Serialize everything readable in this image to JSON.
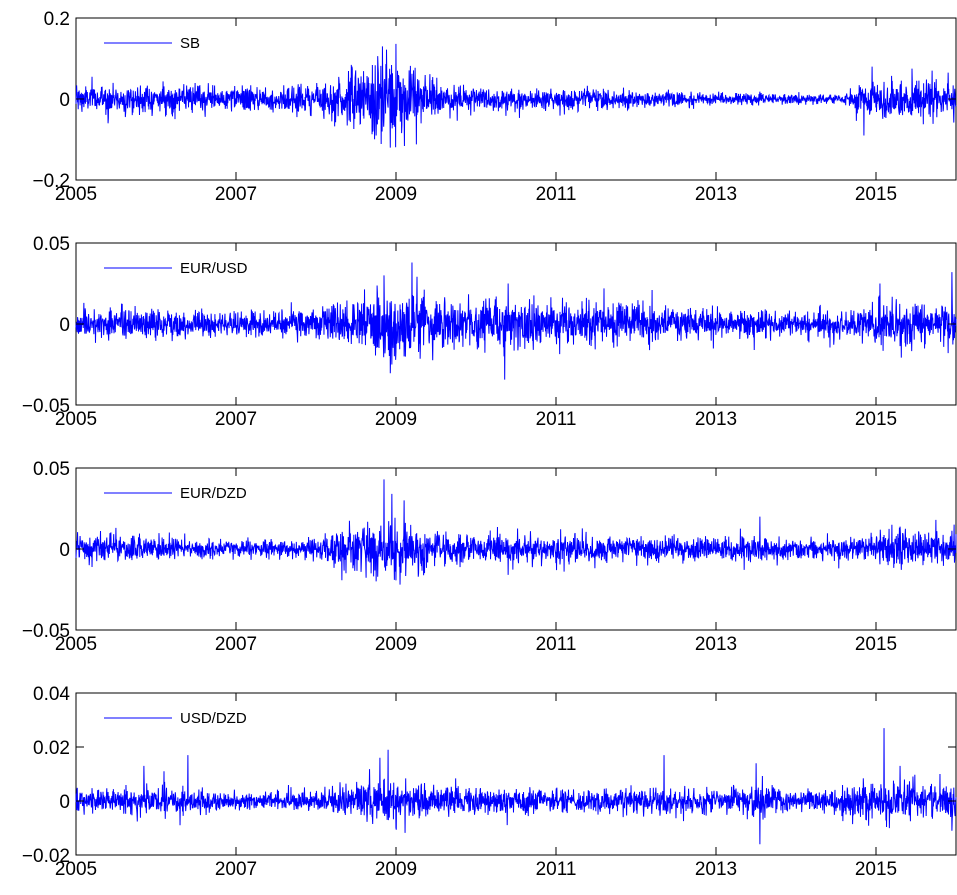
{
  "chart_data": [
    {
      "type": "line",
      "grid": false,
      "legend_position": "top-left",
      "xlim": [
        2005,
        2016
      ],
      "ylim": [
        -0.2,
        0.2
      ],
      "x_ticks": [
        2005,
        2007,
        2009,
        2011,
        2013,
        2015
      ],
      "x_tick_labels": [
        "2005",
        "2007",
        "2009",
        "2011",
        "2013",
        "2015"
      ],
      "y_ticks": [
        -0.2,
        0,
        0.2
      ],
      "y_tick_labels": [
        "−0.2",
        "0",
        "0.2"
      ],
      "series": [
        {
          "name": "SB",
          "color": "#0000ff",
          "volatility_profile": [
            [
              2005.0,
              0.018
            ],
            [
              2006.0,
              0.016
            ],
            [
              2007.0,
              0.015
            ],
            [
              2008.0,
              0.018
            ],
            [
              2008.5,
              0.035
            ],
            [
              2008.8,
              0.05
            ],
            [
              2009.0,
              0.055
            ],
            [
              2009.3,
              0.035
            ],
            [
              2009.6,
              0.02
            ],
            [
              2010.0,
              0.015
            ],
            [
              2011.0,
              0.013
            ],
            [
              2012.0,
              0.011
            ],
            [
              2013.0,
              0.007
            ],
            [
              2014.0,
              0.007
            ],
            [
              2014.6,
              0.006
            ],
            [
              2014.8,
              0.02
            ],
            [
              2015.0,
              0.025
            ],
            [
              2016.0,
              0.022
            ]
          ],
          "peaks": [
            {
              "x": 2008.83,
              "y": 0.13
            },
            {
              "x": 2008.93,
              "y": -0.12
            },
            {
              "x": 2009.0,
              "y": 0.136
            },
            {
              "x": 2008.75,
              "y": -0.09
            },
            {
              "x": 2008.45,
              "y": 0.08
            },
            {
              "x": 2014.85,
              "y": -0.09
            },
            {
              "x": 2014.95,
              "y": 0.08
            },
            {
              "x": 2015.45,
              "y": 0.075
            },
            {
              "x": 2015.7,
              "y": 0.07
            },
            {
              "x": 2015.9,
              "y": 0.065
            },
            {
              "x": 2005.2,
              "y": 0.055
            },
            {
              "x": 2005.4,
              "y": -0.06
            }
          ]
        }
      ]
    },
    {
      "type": "line",
      "grid": false,
      "legend_position": "top-left",
      "xlim": [
        2005,
        2016
      ],
      "ylim": [
        -0.05,
        0.05
      ],
      "x_ticks": [
        2005,
        2007,
        2009,
        2011,
        2013,
        2015
      ],
      "x_tick_labels": [
        "2005",
        "2007",
        "2009",
        "2011",
        "2013",
        "2015"
      ],
      "y_ticks": [
        -0.05,
        0,
        0.05
      ],
      "y_tick_labels": [
        "−0.05",
        "0",
        "0.05"
      ],
      "series": [
        {
          "name": "EUR/USD",
          "color": "#0000ff",
          "volatility_profile": [
            [
              2005.0,
              0.005
            ],
            [
              2006.0,
              0.0045
            ],
            [
              2007.0,
              0.0035
            ],
            [
              2008.0,
              0.0045
            ],
            [
              2008.6,
              0.009
            ],
            [
              2009.0,
              0.011
            ],
            [
              2009.4,
              0.008
            ],
            [
              2009.8,
              0.0055
            ],
            [
              2010.2,
              0.008
            ],
            [
              2010.6,
              0.0075
            ],
            [
              2011.0,
              0.0065
            ],
            [
              2012.0,
              0.006
            ],
            [
              2013.0,
              0.0045
            ],
            [
              2014.0,
              0.0035
            ],
            [
              2014.8,
              0.005
            ],
            [
              2015.0,
              0.007
            ],
            [
              2016.0,
              0.006
            ]
          ],
          "peaks": [
            {
              "x": 2009.2,
              "y": 0.038
            },
            {
              "x": 2008.85,
              "y": 0.03
            },
            {
              "x": 2008.95,
              "y": -0.025
            },
            {
              "x": 2009.1,
              "y": -0.02
            },
            {
              "x": 2010.4,
              "y": 0.025
            },
            {
              "x": 2010.35,
              "y": -0.02
            },
            {
              "x": 2011.6,
              "y": 0.022
            },
            {
              "x": 2012.2,
              "y": 0.021
            },
            {
              "x": 2015.05,
              "y": 0.025
            },
            {
              "x": 2015.95,
              "y": 0.032
            },
            {
              "x": 2015.9,
              "y": -0.018
            },
            {
              "x": 2005.1,
              "y": 0.013
            }
          ]
        }
      ]
    },
    {
      "type": "line",
      "grid": false,
      "legend_position": "top-left",
      "xlim": [
        2005,
        2016
      ],
      "ylim": [
        -0.05,
        0.05
      ],
      "x_ticks": [
        2005,
        2007,
        2009,
        2011,
        2013,
        2015
      ],
      "x_tick_labels": [
        "2005",
        "2007",
        "2009",
        "2011",
        "2013",
        "2015"
      ],
      "y_ticks": [
        -0.05,
        0,
        0.05
      ],
      "y_tick_labels": [
        "−0.05",
        "0",
        "0.05"
      ],
      "series": [
        {
          "name": "EUR/DZD",
          "color": "#0000ff",
          "volatility_profile": [
            [
              2005.0,
              0.004
            ],
            [
              2006.0,
              0.0035
            ],
            [
              2007.0,
              0.0028
            ],
            [
              2008.0,
              0.0035
            ],
            [
              2008.6,
              0.008
            ],
            [
              2009.0,
              0.009
            ],
            [
              2009.4,
              0.006
            ],
            [
              2009.8,
              0.0045
            ],
            [
              2010.3,
              0.005
            ],
            [
              2011.0,
              0.0045
            ],
            [
              2012.0,
              0.004
            ],
            [
              2013.0,
              0.0035
            ],
            [
              2013.6,
              0.004
            ],
            [
              2014.0,
              0.0028
            ],
            [
              2014.8,
              0.004
            ],
            [
              2015.2,
              0.006
            ],
            [
              2016.0,
              0.0055
            ]
          ],
          "peaks": [
            {
              "x": 2008.85,
              "y": 0.043
            },
            {
              "x": 2009.1,
              "y": 0.03
            },
            {
              "x": 2008.75,
              "y": -0.02
            },
            {
              "x": 2009.05,
              "y": -0.022
            },
            {
              "x": 2008.95,
              "y": 0.034
            },
            {
              "x": 2013.55,
              "y": 0.02
            },
            {
              "x": 2015.2,
              "y": 0.015
            },
            {
              "x": 2015.75,
              "y": 0.018
            },
            {
              "x": 2010.4,
              "y": -0.016
            },
            {
              "x": 2011.1,
              "y": -0.014
            },
            {
              "x": 2005.05,
              "y": 0.008
            },
            {
              "x": 2005.5,
              "y": 0.013
            }
          ]
        }
      ]
    },
    {
      "type": "line",
      "grid": false,
      "legend_position": "top-left",
      "xlim": [
        2005,
        2016
      ],
      "ylim": [
        -0.02,
        0.04
      ],
      "x_ticks": [
        2005,
        2007,
        2009,
        2011,
        2013,
        2015
      ],
      "x_tick_labels": [
        "2005",
        "2007",
        "2009",
        "2011",
        "2013",
        "2015"
      ],
      "y_ticks": [
        -0.02,
        0,
        0.02,
        0.04
      ],
      "y_tick_labels": [
        "−0.02",
        "0",
        "0.02",
        "0.04"
      ],
      "series": [
        {
          "name": "USD/DZD",
          "color": "#0000ff",
          "volatility_profile": [
            [
              2005.0,
              0.0022
            ],
            [
              2006.0,
              0.0025
            ],
            [
              2006.5,
              0.0022
            ],
            [
              2007.0,
              0.0014
            ],
            [
              2008.0,
              0.0018
            ],
            [
              2008.7,
              0.004
            ],
            [
              2009.0,
              0.004
            ],
            [
              2009.4,
              0.003
            ],
            [
              2010.0,
              0.0025
            ],
            [
              2011.0,
              0.0022
            ],
            [
              2012.0,
              0.0025
            ],
            [
              2013.0,
              0.0022
            ],
            [
              2013.6,
              0.0028
            ],
            [
              2014.0,
              0.0016
            ],
            [
              2014.7,
              0.003
            ],
            [
              2015.0,
              0.0038
            ],
            [
              2016.0,
              0.0032
            ]
          ],
          "peaks": [
            {
              "x": 2006.4,
              "y": 0.017
            },
            {
              "x": 2006.1,
              "y": 0.011
            },
            {
              "x": 2005.85,
              "y": 0.013
            },
            {
              "x": 2006.3,
              "y": -0.009
            },
            {
              "x": 2008.8,
              "y": 0.016
            },
            {
              "x": 2008.9,
              "y": 0.019
            },
            {
              "x": 2009.0,
              "y": -0.01
            },
            {
              "x": 2012.35,
              "y": 0.017
            },
            {
              "x": 2013.55,
              "y": -0.016
            },
            {
              "x": 2013.5,
              "y": 0.014
            },
            {
              "x": 2015.1,
              "y": 0.027
            },
            {
              "x": 2015.3,
              "y": 0.013
            },
            {
              "x": 2015.95,
              "y": -0.011
            },
            {
              "x": 2015.8,
              "y": 0.01
            }
          ]
        }
      ]
    }
  ]
}
